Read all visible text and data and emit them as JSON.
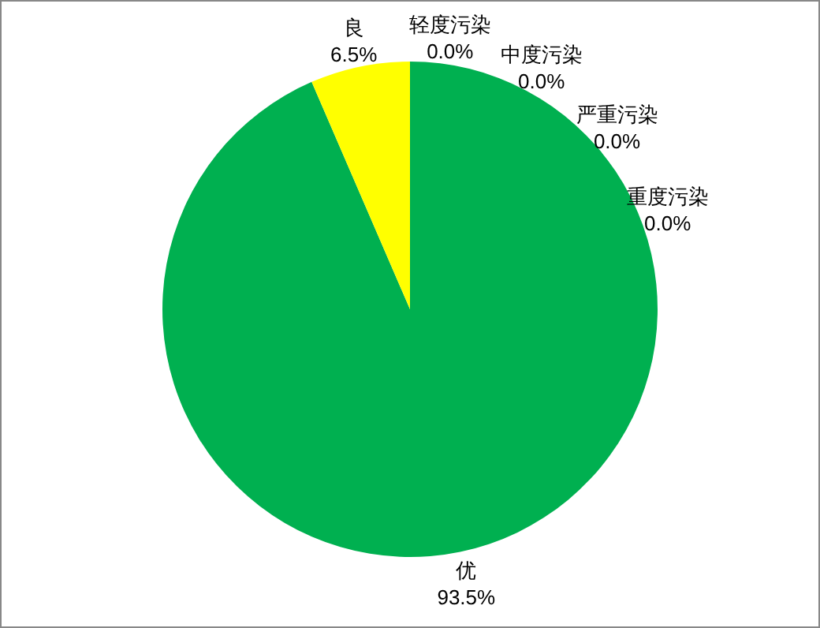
{
  "chart_data": {
    "type": "pie",
    "categories": [
      "优",
      "良",
      "轻度污染",
      "中度污染",
      "严重污染",
      "重度污染"
    ],
    "values": [
      93.5,
      6.5,
      0,
      0,
      0,
      0
    ],
    "value_labels": [
      "93.5%",
      "6.5%",
      "0.0%",
      "0.0%",
      "0.0%",
      "0.0%"
    ],
    "colors": [
      "#00b050",
      "#ffff00",
      "#ff7f00",
      "#ff0000",
      "#7e0023",
      "#99004c"
    ],
    "legend": false
  }
}
